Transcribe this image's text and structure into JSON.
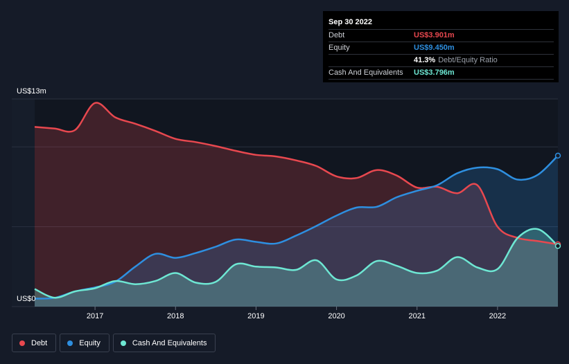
{
  "tooltip": {
    "date": "Sep 30 2022",
    "rows": [
      {
        "label": "Debt",
        "value": "US$3.901m",
        "color": "#e8484f"
      },
      {
        "label": "Equity",
        "value": "US$9.450m",
        "color": "#2e8fe0"
      },
      {
        "label": "",
        "value": "41.3%",
        "suffix": "Debt/Equity Ratio",
        "color": "#ffffff"
      },
      {
        "label": "Cash And Equivalents",
        "value": "US$3.796m",
        "color": "#6ee7d3"
      }
    ]
  },
  "legend": [
    {
      "label": "Debt",
      "color": "#e8484f"
    },
    {
      "label": "Equity",
      "color": "#2e8fe0"
    },
    {
      "label": "Cash And Equivalents",
      "color": "#6ee7d3"
    }
  ],
  "chart_data": {
    "type": "area",
    "title": "",
    "xlabel": "",
    "ylabel": "",
    "y_top_label": "US$13m",
    "y_bottom_label": "US$0",
    "ylim": [
      0,
      13
    ],
    "xlim": [
      2016.25,
      2022.75
    ],
    "x_ticks": [
      "2017",
      "2018",
      "2019",
      "2020",
      "2021",
      "2022"
    ],
    "x_tick_values": [
      2017,
      2018,
      2019,
      2020,
      2021,
      2022
    ],
    "grid": true,
    "legend_position": "bottom-left",
    "series": [
      {
        "name": "Debt",
        "color": "#e8484f",
        "x": [
          2016.25,
          2016.5,
          2016.75,
          2017.0,
          2017.25,
          2017.5,
          2017.75,
          2018.0,
          2018.25,
          2018.5,
          2018.75,
          2019.0,
          2019.25,
          2019.5,
          2019.75,
          2020.0,
          2020.25,
          2020.5,
          2020.75,
          2021.0,
          2021.25,
          2021.5,
          2021.75,
          2022.0,
          2022.25,
          2022.5,
          2022.75
        ],
        "values": [
          11.25,
          11.15,
          11.05,
          12.75,
          11.85,
          11.45,
          11.0,
          10.5,
          10.3,
          10.05,
          9.75,
          9.5,
          9.4,
          9.15,
          8.8,
          8.15,
          8.05,
          8.55,
          8.2,
          7.45,
          7.5,
          7.1,
          7.6,
          5.0,
          4.3,
          4.1,
          3.901
        ]
      },
      {
        "name": "Equity",
        "color": "#2e8fe0",
        "x": [
          2016.25,
          2016.5,
          2016.75,
          2017.0,
          2017.25,
          2017.5,
          2017.75,
          2018.0,
          2018.25,
          2018.5,
          2018.75,
          2019.0,
          2019.25,
          2019.5,
          2019.75,
          2020.0,
          2020.25,
          2020.5,
          2020.75,
          2021.0,
          2021.25,
          2021.5,
          2021.75,
          2022.0,
          2022.25,
          2022.5,
          2022.75
        ],
        "values": [
          0.5,
          0.55,
          0.95,
          1.2,
          1.55,
          2.5,
          3.3,
          3.05,
          3.35,
          3.75,
          4.2,
          4.05,
          3.95,
          4.45,
          5.05,
          5.7,
          6.2,
          6.25,
          6.85,
          7.25,
          7.6,
          8.35,
          8.7,
          8.6,
          7.95,
          8.25,
          9.45
        ]
      },
      {
        "name": "Cash And Equivalents",
        "color": "#6ee7d3",
        "x": [
          2016.25,
          2016.5,
          2016.75,
          2017.0,
          2017.25,
          2017.5,
          2017.75,
          2018.0,
          2018.25,
          2018.5,
          2018.75,
          2019.0,
          2019.25,
          2019.5,
          2019.75,
          2020.0,
          2020.25,
          2020.5,
          2020.75,
          2021.0,
          2021.25,
          2021.5,
          2021.75,
          2022.0,
          2022.25,
          2022.5,
          2022.75
        ],
        "values": [
          1.1,
          0.55,
          0.95,
          1.15,
          1.6,
          1.4,
          1.6,
          2.1,
          1.5,
          1.55,
          2.65,
          2.5,
          2.45,
          2.3,
          2.9,
          1.7,
          1.95,
          2.85,
          2.55,
          2.1,
          2.25,
          3.1,
          2.45,
          2.35,
          4.3,
          4.85,
          3.796
        ]
      }
    ]
  }
}
